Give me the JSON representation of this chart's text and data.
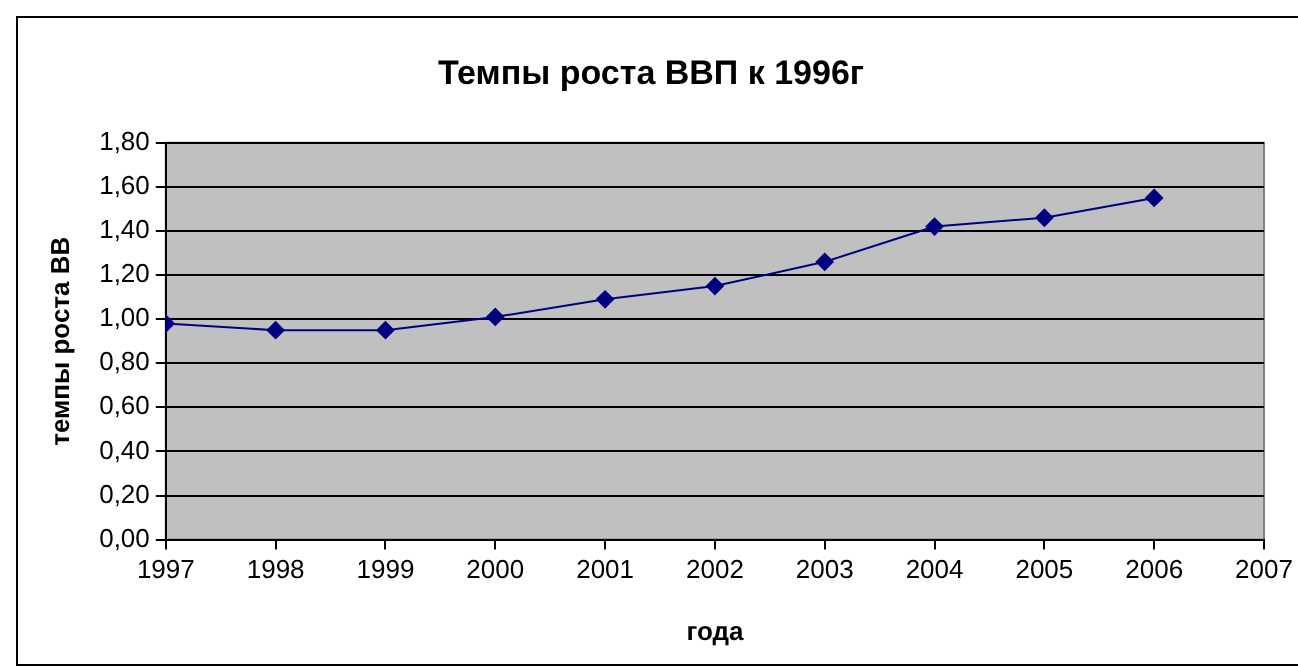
{
  "chart_data": {
    "type": "line",
    "title": "Темпы роста ВВП к 1996г",
    "xlabel": "года",
    "ylabel": "темпы роста ВВ",
    "x": [
      1997,
      1998,
      1999,
      2000,
      2001,
      2002,
      2003,
      2004,
      2005,
      2006
    ],
    "series": [
      {
        "color": "#000080",
        "values": [
          0.98,
          0.95,
          0.95,
          1.01,
          1.09,
          1.15,
          1.26,
          1.42,
          1.46,
          1.55
        ]
      }
    ],
    "xlim": [
      1997,
      2007
    ],
    "xticks": [
      1997,
      1998,
      1999,
      2000,
      2001,
      2002,
      2003,
      2004,
      2005,
      2006,
      2007
    ],
    "ylim": [
      0,
      1.8
    ],
    "yticks": [
      {
        "value": 0,
        "label": "0,00"
      },
      {
        "value": 0.2,
        "label": "0,20"
      },
      {
        "value": 0.4,
        "label": "0,40"
      },
      {
        "value": 0.6,
        "label": "0,60"
      },
      {
        "value": 0.8,
        "label": "0,80"
      },
      {
        "value": 1,
        "label": "1,00"
      },
      {
        "value": 1.2,
        "label": "1,20"
      },
      {
        "value": 1.4,
        "label": "1,40"
      },
      {
        "value": 1.6,
        "label": "1,60"
      },
      {
        "value": 1.8,
        "label": "1,80"
      }
    ],
    "grid": "y",
    "legend": false,
    "marker": "diamond",
    "line_style": "solid"
  }
}
